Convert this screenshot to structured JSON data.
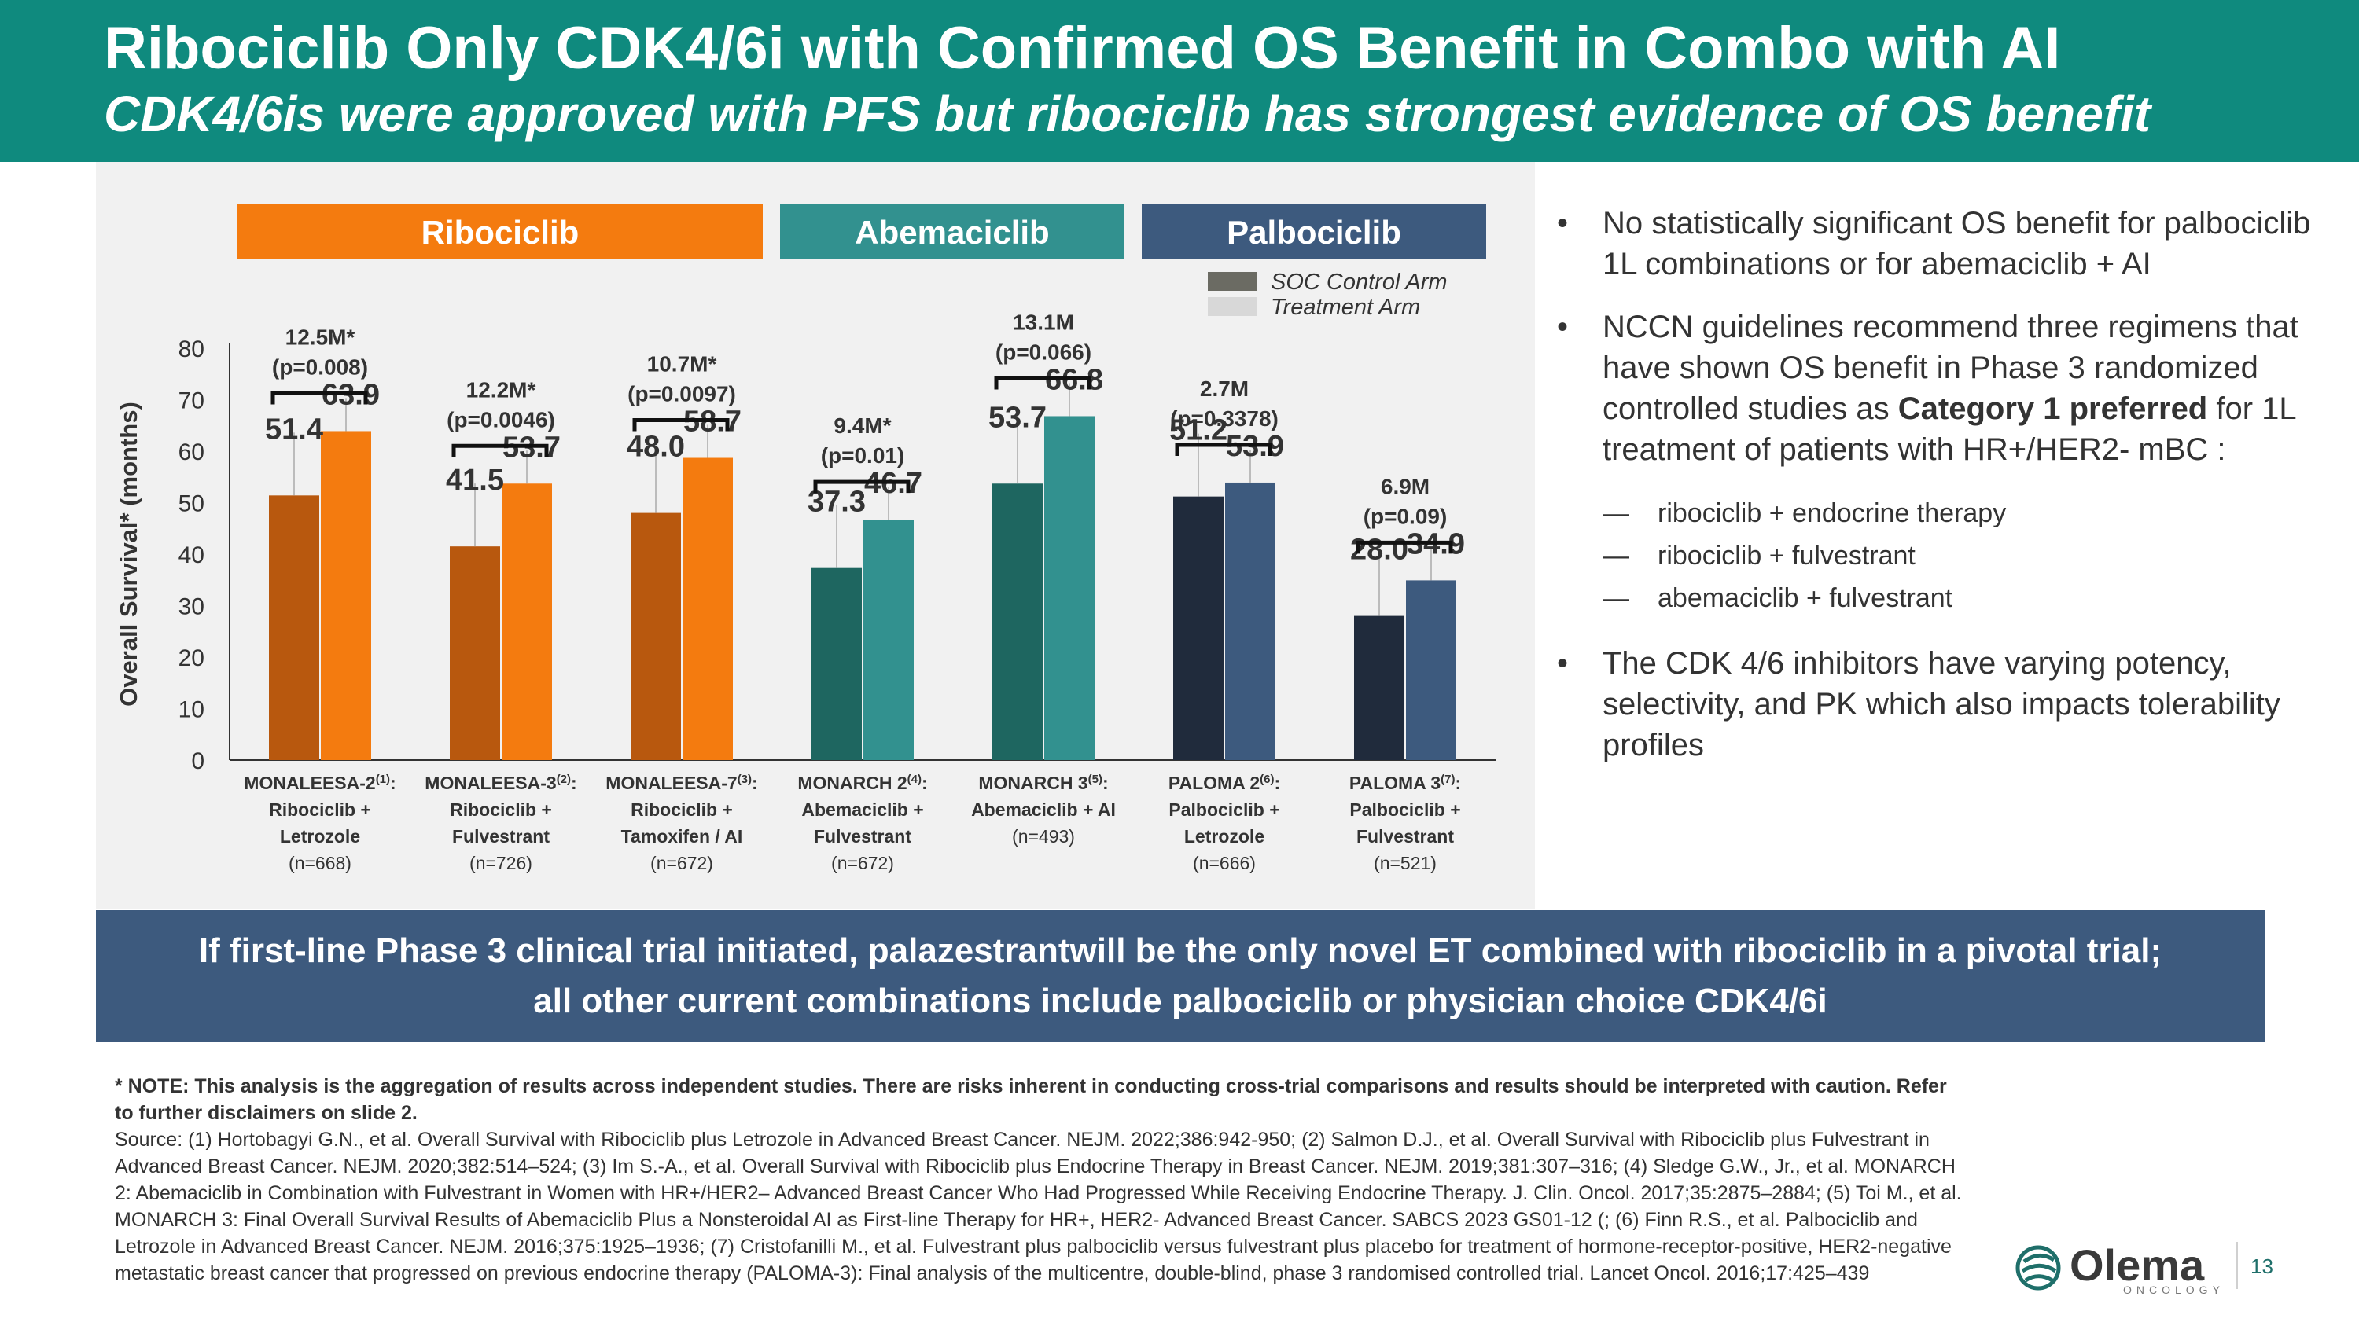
{
  "header": {
    "title": "Ribociclib Only CDK4/6i with Confirmed OS Benefit in Combo with AI",
    "subtitle": "CDK4/6is were approved with PFS but ribociclib has strongest evidence of OS benefit"
  },
  "chart_data": {
    "type": "bar",
    "ylabel": "Overall Survival* (months)",
    "ylim": [
      0,
      80
    ],
    "yticks": [
      "0",
      "10",
      "20",
      "30",
      "40",
      "50",
      "60",
      "70",
      "80"
    ],
    "legend": [
      "SOC Control Arm",
      "Treatment Arm"
    ],
    "drug_groups": [
      {
        "label": "Ribociclib",
        "color": "#f47b0f"
      },
      {
        "label": "Abemaciclib",
        "color": "#32918f"
      },
      {
        "label": "Palbociclib",
        "color": "#3d5a7e"
      }
    ],
    "categories": [
      {
        "name": "MONALEESA-2",
        "ref": "(1)",
        "line1": "Ribociclib +",
        "line2": "Letrozole",
        "n": "(n=668)",
        "control": 51.4,
        "treatment": 63.9,
        "control_label": "51.4",
        "treatment_label": "63.9",
        "diff": "12.5M*",
        "p": "(p=0.008)",
        "control_color": "#b8580e",
        "treatment_color": "#f47b0f"
      },
      {
        "name": "MONALEESA-3",
        "ref": "(2)",
        "line1": "Ribociclib +",
        "line2": "Fulvestrant",
        "n": "(n=726)",
        "control": 41.5,
        "treatment": 53.7,
        "control_label": "41.5",
        "treatment_label": "53.7",
        "diff": "12.2M*",
        "p": "(p=0.0046)",
        "control_color": "#b8580e",
        "treatment_color": "#f47b0f"
      },
      {
        "name": "MONALEESA-7",
        "ref": "(3)",
        "line1": "Ribociclib +",
        "line2": "Tamoxifen / AI",
        "n": "(n=672)",
        "control": 48.0,
        "treatment": 58.7,
        "control_label": "48.0",
        "treatment_label": "58.7",
        "diff": "10.7M*",
        "p": "(p=0.0097)",
        "control_color": "#b8580e",
        "treatment_color": "#f47b0f"
      },
      {
        "name": "MONARCH 2",
        "ref": "(4)",
        "line1": "Abemaciclib +",
        "line2": "Fulvestrant",
        "n": "(n=672)",
        "control": 37.3,
        "treatment": 46.7,
        "control_label": "37.3",
        "treatment_label": "46.7",
        "diff": "9.4M*",
        "p": "(p=0.01)",
        "control_color": "#1e6660",
        "treatment_color": "#32918f"
      },
      {
        "name": "MONARCH 3",
        "ref": "(5)",
        "line1": "Abemaciclib + AI",
        "line2": "",
        "n": "(n=493)",
        "control": 53.7,
        "treatment": 66.8,
        "control_label": "53.7",
        "treatment_label": "66.8",
        "diff": "13.1M",
        "p": "(p=0.066)",
        "control_color": "#1e6660",
        "treatment_color": "#32918f"
      },
      {
        "name": "PALOMA 2",
        "ref": "(6)",
        "line1": "Palbociclib +",
        "line2": "Letrozole",
        "n": "(n=666)",
        "control": 51.2,
        "treatment": 53.9,
        "control_label": "51.2",
        "treatment_label": "53.9",
        "diff": "2.7M",
        "p": "(p=0.3378)",
        "control_color": "#202b3c",
        "treatment_color": "#3d5a7e"
      },
      {
        "name": "PALOMA 3",
        "ref": "(7)",
        "line1": "Palbociclib +",
        "line2": "Fulvestrant",
        "n": "(n=521)",
        "control": 28.0,
        "treatment": 34.9,
        "control_label": "28.0",
        "treatment_label": "34.9",
        "diff": "6.9M",
        "p": "(p=0.09)",
        "control_color": "#202b3c",
        "treatment_color": "#3d5a7e"
      }
    ]
  },
  "bullets": {
    "b1": "No statistically significant OS benefit for palbociclib 1L combinations or for abemaciclib + AI",
    "b2_pre": "NCCN guidelines recommend three regimens that have shown OS benefit in Phase 3 randomized controlled studies as ",
    "b2_bold": "Category 1 preferred",
    "b2_post": " for 1L treatment of patients with HR+/HER2- mBC :",
    "subs": [
      "ribociclib + endocrine therapy",
      "ribociclib + fulvestrant",
      "abemaciclib + fulvestrant"
    ],
    "b3": "The CDK 4/6 inhibitors have varying potency, selectivity, and PK which also impacts tolerability profiles"
  },
  "banner": {
    "line1": "If first-line Phase 3 clinical trial initiated, palazestrantwill be the only novel ET combined with ribociclib in a pivotal trial;",
    "line2": "all other current combinations include palbociclib or physician choice CDK4/6i"
  },
  "footnote": {
    "note": "* NOTE: This analysis is the aggregation of results across independent studies.  There are risks inherent in conducting cross-trial comparisons and results should be interpreted with caution. Refer to further disclaimers on slide 2.",
    "source": "Source: (1) Hortobagyi G.N., et al. Overall Survival with Ribociclib plus Letrozole in Advanced Breast Cancer. NEJM. 2022;386:942-950; (2) Salmon D.J., et al. Overall Survival with Ribociclib plus Fulvestrant in Advanced Breast Cancer. NEJM. 2020;382:514–524; (3) Im S.-A., et al. Overall Survival with Ribociclib plus Endocrine Therapy in Breast Cancer. NEJM. 2019;381:307–316; (4) Sledge G.W., Jr., et al. MONARCH 2: Abemaciclib in Combination with Fulvestrant in Women with HR+/HER2– Advanced Breast Cancer Who Had Progressed While Receiving Endocrine Therapy. J. Clin. Oncol. 2017;35:2875–2884; (5) Toi M., et al. MONARCH 3: Final Overall Survival Results of Abemaciclib Plus a Nonsteroidal AI as First-line Therapy for HR+, HER2- Advanced Breast Cancer. SABCS 2023 GS01-12 (; (6) Finn R.S., et al. Palbociclib and Letrozole in Advanced Breast Cancer. NEJM. 2016;375:1925–1936; (7) Cristofanilli M., et al. Fulvestrant plus palbociclib versus fulvestrant plus placebo for treatment of hormone-receptor-positive, HER2-negative metastatic breast cancer that progressed on previous endocrine therapy (PALOMA-3): Final analysis of the multicentre, double-blind, phase 3 randomised controlled trial. Lancet Oncol. 2016;17:425–439"
  },
  "logo": {
    "word": "Olema",
    "sub": "ONCOLOGY"
  },
  "page_number": "13"
}
